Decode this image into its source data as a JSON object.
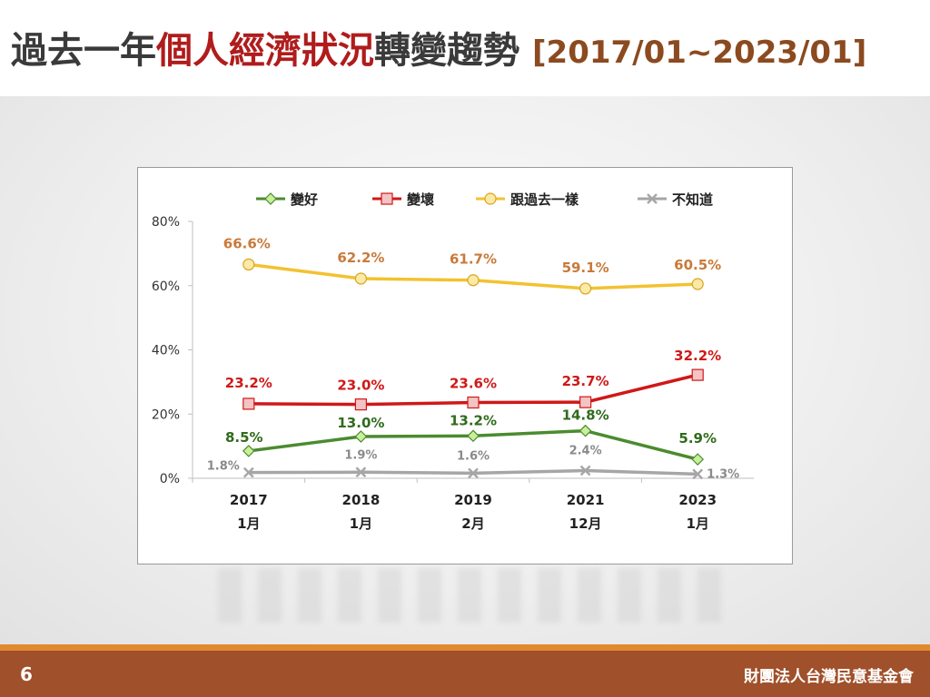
{
  "header": {
    "title_pre": "過去一年",
    "title_highlight": "個人經濟狀況",
    "title_post": "轉變趨勢",
    "title_range": "[2017/01~2023/01]"
  },
  "footer": {
    "page_number": "6",
    "organization": "財團法人台灣民意基金會"
  },
  "colors": {
    "title_highlight": "#b01c1c",
    "range": "#8b4a1f",
    "footer_bar": "#a0502a",
    "footer_stripe": "#e08a2e"
  },
  "chart_data": {
    "type": "line",
    "categories": [
      {
        "year": "2017",
        "month": "1月"
      },
      {
        "year": "2018",
        "month": "1月"
      },
      {
        "year": "2019",
        "month": "2月"
      },
      {
        "year": "2021",
        "month": "12月"
      },
      {
        "year": "2023",
        "month": "1月"
      }
    ],
    "y_ticks": [
      "0%",
      "20%",
      "40%",
      "60%",
      "80%"
    ],
    "ylim": [
      0,
      80
    ],
    "grid": false,
    "legend_position": "top",
    "series": [
      {
        "name": "變好",
        "color": "#4b8b2f",
        "label_color": "#2f6b1c",
        "marker": "diamond",
        "marker_fill": "#c9ef9a",
        "values": [
          8.5,
          13.0,
          13.2,
          14.8,
          5.9
        ],
        "labels": [
          "8.5%",
          "13.0%",
          "13.2%",
          "14.8%",
          "5.9%"
        ]
      },
      {
        "name": "變壞",
        "color": "#d01818",
        "label_color": "#d01818",
        "marker": "square",
        "marker_fill": "#f4c4c4",
        "values": [
          23.2,
          23.0,
          23.6,
          23.7,
          32.2
        ],
        "labels": [
          "23.2%",
          "23.0%",
          "23.6%",
          "23.7%",
          "32.2%"
        ]
      },
      {
        "name": "跟過去一樣",
        "color": "#f2c230",
        "label_color": "#c97a3a",
        "marker": "circle",
        "marker_fill": "#fbe9a6",
        "values": [
          66.6,
          62.2,
          61.7,
          59.1,
          60.5
        ],
        "labels": [
          "66.6%",
          "62.2%",
          "61.7%",
          "59.1%",
          "60.5%"
        ]
      },
      {
        "name": "不知道",
        "color": "#a6a6a6",
        "label_color": "#8a8a8a",
        "marker": "x",
        "marker_fill": "#cfcfcf",
        "values": [
          1.8,
          1.9,
          1.6,
          2.4,
          1.3
        ],
        "labels": [
          "1.8%",
          "1.9%",
          "1.6%",
          "2.4%",
          "1.3%"
        ]
      }
    ]
  }
}
